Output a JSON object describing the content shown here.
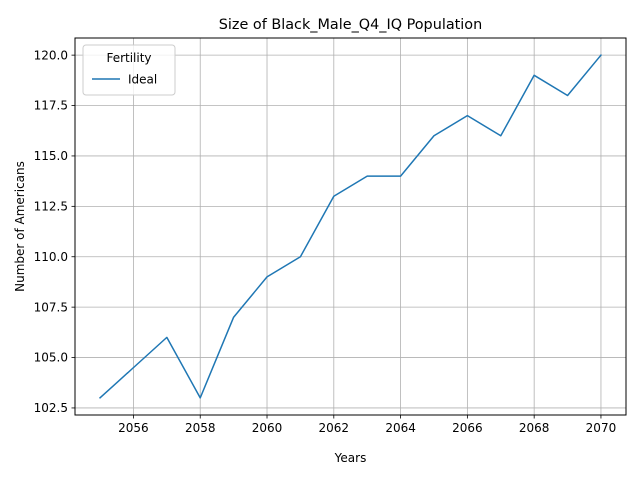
{
  "chart_data": {
    "type": "line",
    "title": "Size of Black_Male_Q4_IQ Population",
    "xlabel": "Years",
    "ylabel": "Number of Americans",
    "xlim": [
      2054.25,
      2070.75
    ],
    "ylim": [
      102.15,
      120.85
    ],
    "x_ticks": [
      2056,
      2058,
      2060,
      2062,
      2064,
      2066,
      2068,
      2070
    ],
    "y_ticks": [
      102.5,
      105.0,
      107.5,
      110.0,
      112.5,
      115.0,
      117.5,
      120.0
    ],
    "x_tick_labels": [
      "2056",
      "2058",
      "2060",
      "2062",
      "2064",
      "2066",
      "2068",
      "2070"
    ],
    "y_tick_labels": [
      "102.5",
      "105.0",
      "107.5",
      "110.0",
      "112.5",
      "115.0",
      "117.5",
      "120.0"
    ],
    "grid": true,
    "legend": {
      "title": "Fertility",
      "placement": "upper left"
    },
    "x": [
      2055,
      2056,
      2057,
      2058,
      2059,
      2060,
      2061,
      2062,
      2063,
      2064,
      2065,
      2066,
      2067,
      2068,
      2069,
      2070
    ],
    "series": [
      {
        "name": "Ideal",
        "color": "#1f77b4",
        "values": [
          103,
          104.5,
          106,
          103,
          107,
          109,
          110,
          113,
          114,
          114,
          116,
          117,
          116,
          119,
          118,
          120
        ]
      }
    ]
  }
}
